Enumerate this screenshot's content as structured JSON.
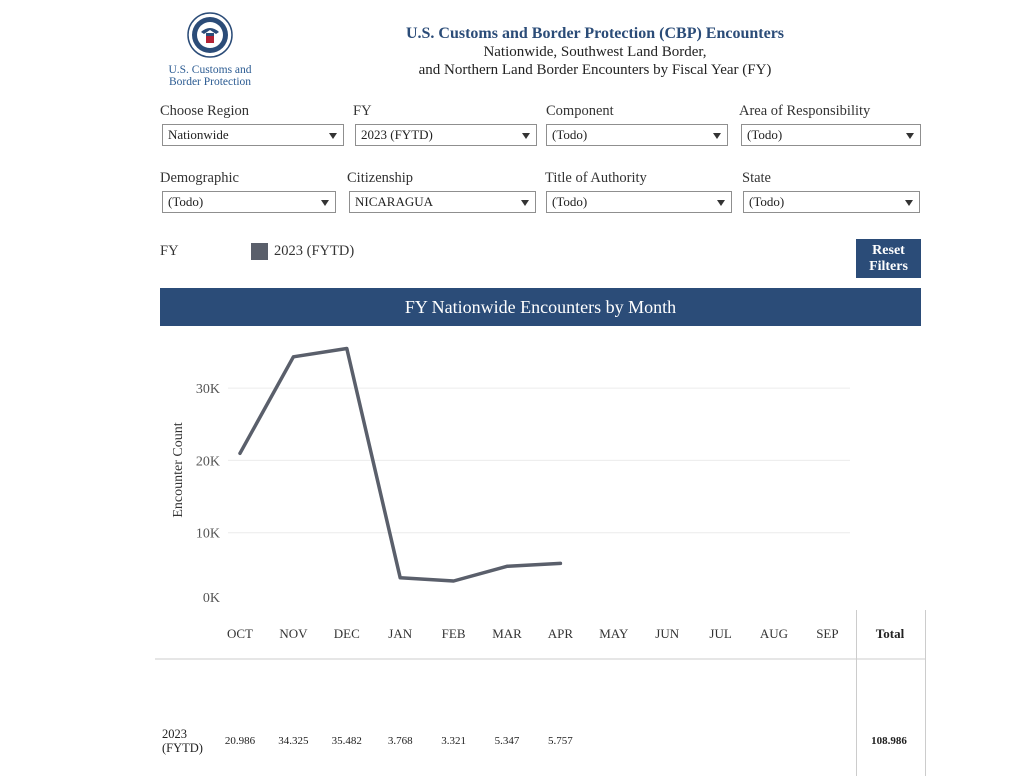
{
  "logo": {
    "agency_line1": "U.S. Customs and",
    "agency_line2": "Border Protection"
  },
  "header": {
    "title": "U.S. Customs and Border Protection (CBP) Encounters",
    "subtitle1": "Nationwide, Southwest Land Border,",
    "subtitle2": "and Northern Land Border Encounters by Fiscal Year (FY)"
  },
  "filters": {
    "region": {
      "label": "Choose Region",
      "value": "Nationwide"
    },
    "fy": {
      "label": "FY",
      "value": "2023 (FYTD)"
    },
    "component": {
      "label": "Component",
      "value": "(Todo)"
    },
    "aor": {
      "label": "Area of Responsibility",
      "value": "(Todo)"
    },
    "demographic": {
      "label": "Demographic",
      "value": "(Todo)"
    },
    "citizenship": {
      "label": "Citizenship",
      "value": "NICARAGUA"
    },
    "authority": {
      "label": "Title of Authority",
      "value": "(Todo)"
    },
    "state": {
      "label": "State",
      "value": "(Todo)"
    }
  },
  "legend": {
    "title": "FY",
    "item": "2023 (FYTD)",
    "color": "#5a5f6b"
  },
  "reset_button": {
    "line1": "Reset",
    "line2": "Filters"
  },
  "banner": {
    "title": "FY Nationwide Encounters by Month"
  },
  "table": {
    "year_line1": "2023",
    "year_line2": "(FYTD)",
    "values": [
      "20.986",
      "34.325",
      "35.482",
      "3.768",
      "3.321",
      "5.347",
      "5.757",
      "",
      "",
      "",
      "",
      ""
    ],
    "total_label": "Total",
    "total": "108.986"
  },
  "chart_data": {
    "type": "line",
    "title": "FY Nationwide Encounters by Month",
    "xlabel": "",
    "ylabel": "Encounter Count",
    "categories": [
      "OCT",
      "NOV",
      "DEC",
      "JAN",
      "FEB",
      "MAR",
      "APR",
      "MAY",
      "JUN",
      "JUL",
      "AUG",
      "SEP"
    ],
    "series": [
      {
        "name": "2023 (FYTD)",
        "color": "#5a5f6b",
        "values": [
          20986,
          34325,
          35482,
          3768,
          3321,
          5347,
          5757,
          null,
          null,
          null,
          null,
          null
        ]
      }
    ],
    "yticks": [
      0,
      10000,
      20000,
      30000
    ],
    "ytick_labels": [
      "0K",
      "10K",
      "20K",
      "30K"
    ],
    "ylim": [
      0,
      37000
    ],
    "grid": true
  }
}
